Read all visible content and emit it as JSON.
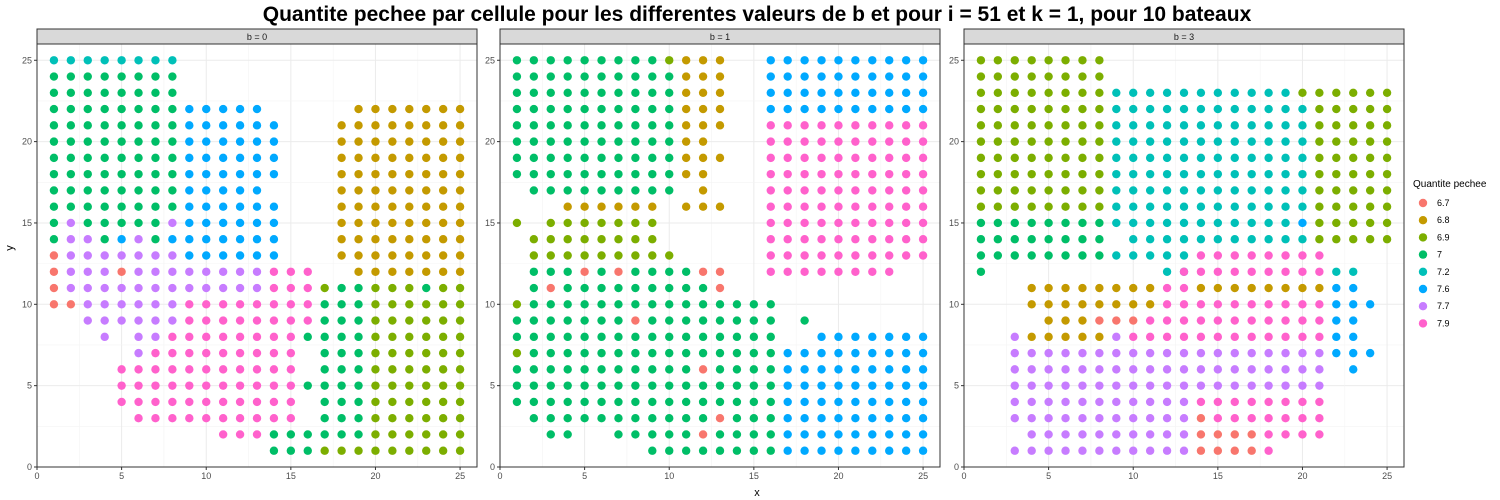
{
  "colors": {
    "6.7": "#F8766D",
    "6.8": "#C49A00",
    "6.9": "#7CAE00",
    "7": "#00BE67",
    "7.2": "#00C0B8",
    "7.6": "#00A9FF",
    "7.7": "#C77CFF",
    "7.9": "#FF61CC"
  },
  "chart_data": {
    "type": "scatter",
    "title": "Quantite pechee par cellule pour les differentes valeurs de b et pour i = 51 et k = 1, pour 10 bateaux",
    "xlabel": "x",
    "ylabel": "y",
    "xlim": [
      0,
      26
    ],
    "ylim": [
      0,
      26
    ],
    "x_ticks": [
      "0",
      "5",
      "10",
      "15",
      "20",
      "25"
    ],
    "y_ticks": [
      "0",
      "5",
      "10",
      "15",
      "20",
      "25"
    ],
    "grid": true,
    "legend": {
      "title": "Quantite pechee",
      "position": "right",
      "levels": [
        "6.7",
        "6.8",
        "6.9",
        "7",
        "7.2",
        "7.6",
        "7.7",
        "7.9"
      ]
    },
    "panels": [
      {
        "strip": "b = 0",
        "rows": {
          "25": "T1-8",
          "24": "G1-8",
          "23": "G1-8",
          "22": "G1-8 B9-13 O19-25",
          "21": "G1-8 B9-14 O18-25",
          "20": "G1-8 B9-14 O18-25",
          "19": "G1-8 B9-14 O18-25",
          "18": "G1-8 B9-14 O18-25",
          "17": "G1-8 B9-13 O18-25",
          "16": "G1-8 B9-14 O18-25",
          "15": "G1 P2 G3-7 P8 B9-14 O18-25",
          "14": "G1 P2-3 G4 B5 P6 G7 B8-14 O18-25",
          "13": "R1 P2-8 B9-14 O18-25",
          "12": "R1 P2-4 R5 P6-13 M14-16 O19-25",
          "11": "R1 P2-13 M14-16 Y17 G18-19 Y20-22 G23 Y24-25",
          "10": "R1 R2 P3-8 M9-16 G17-19 Y20-25",
          "9": "P3-8 M9-16 G17-19 Y20-25",
          "8": "P4 P6-7 M8-15 G16-19 Y20-25",
          "7": "P6 M7-15 G17-19 Y20-25",
          "6": "M5-15 G17-19 Y20-25",
          "5": "M5-15 G16-19 Y20-25",
          "4": "M5-15 G17-19 Y20-25",
          "3": "M6-15 G17-19 Y20-25",
          "2": "M11-13 G14-19 Y20-25",
          "1": "G14-16 Y17-25"
        }
      },
      {
        "strip": "b = 1",
        "rows": {
          "25": "G1-9 Y10 O11-13 B16-25",
          "24": "G1-10 O11-13 B16-25",
          "23": "G1-10 O11-13 B16-25",
          "22": "G1-10 O11-13 B16-25",
          "21": "G1-10 O11-13 M16-25",
          "20": "G1-10 O11-12 M16-25",
          "19": "G1-10 O11-13 M16-25",
          "18": "G1-10 O11-12 M16-25",
          "17": "G2-10 O12 M16-25",
          "16": "O4-9 O11-13 M16-25",
          "15": "Y1 Y3-9 M16-25",
          "14": "Y2-9 M16-25",
          "13": "Y2-10 M16-25",
          "12": "G2-4 R5 G6 R7 G8-11 R12-13 M16-23",
          "11": "G2 R3 G4-12 R13",
          "10": "Y1 G2-16",
          "9": "G1-7 R8 G9-16 G18",
          "8": "G1-16 B19-25",
          "7": "Y1 G2-16 B17-25",
          "6": "G1-11 R12 G13-16 B17-25",
          "5": "G1-16 B17-25",
          "4": "G1-16 B17-25",
          "3": "G2-12 R13 G14-16 B17-25",
          "2": "G3-4 G7-11 R12 G13-16 B17-25",
          "1": "G9-16 B17-25"
        }
      },
      {
        "strip": "b = 3",
        "rows": {
          "25": "Y1-8",
          "24": "Y1-8",
          "23": "Y1-8 T9-19 Y20-25",
          "22": "Y1-8 T9-20 Y21-25",
          "21": "Y1-8 T9-20 Y21-25",
          "20": "Y1-8 T9-20 Y21-25",
          "19": "Y1-8 T9-20 Y21-25",
          "18": "Y1-8 T9-20 Y21-25",
          "17": "Y1-8 T9-20 Y21-25",
          "16": "Y1-8 T9-20 Y21-25",
          "15": "G1-8 T9-19 B20 Y21-25",
          "14": "G1-8 T10-20 Y21-25",
          "13": "G1-8 T9-13 M14-21",
          "12": "G1 T12-13 M13-21 T22-23",
          "11": "O4-8 O9-11 M12-13 O14-21 B22-23",
          "10": "O4-11 M12-21 B22-24",
          "9": "O5-7 R8-10 M11-21 B22-23",
          "8": "P3 O4-8 P9 M10-21 B22-23",
          "7": "P3-21 B22-24",
          "6": "P3-21 B23",
          "5": "P3-21",
          "4": "P3-13 M14-21",
          "3": "P3-13 R14 M15-21",
          "2": "P4-13 R14-17 M18-21",
          "1": "P3-13 R14-17 M18"
        }
      }
    ]
  }
}
